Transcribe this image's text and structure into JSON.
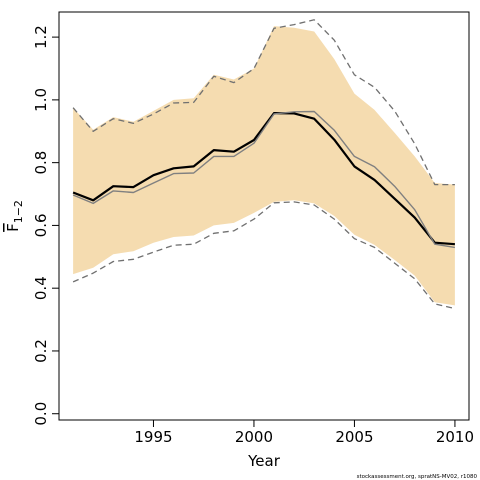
{
  "chart_data": {
    "type": "line",
    "xlabel": "Year",
    "ylabel": "F",
    "ylabel_subscript": "1−2",
    "xlim": [
      1990.3,
      2010.7
    ],
    "ylim": [
      -0.02,
      1.28
    ],
    "xticks": [
      1995,
      2000,
      2005,
      2010
    ],
    "yticks": [
      0.0,
      0.2,
      0.4,
      0.6,
      0.8,
      1.0,
      1.2
    ],
    "ytick_labels": [
      "0.0",
      "0.2",
      "0.4",
      "0.6",
      "0.8",
      "1.0",
      "1.2"
    ],
    "x": [
      1991,
      1992,
      1993,
      1994,
      1995,
      1996,
      1997,
      1998,
      1999,
      2000,
      2001,
      2002,
      2003,
      2004,
      2005,
      2006,
      2007,
      2008,
      2009,
      2010
    ],
    "series": [
      {
        "role": "estimate",
        "color": "#000000",
        "values": [
          0.705,
          0.68,
          0.725,
          0.722,
          0.76,
          0.782,
          0.788,
          0.84,
          0.835,
          0.872,
          0.958,
          0.957,
          0.94,
          0.873,
          0.788,
          0.745,
          0.685,
          0.625,
          0.545,
          0.54
        ]
      },
      {
        "role": "comparison",
        "color": "#808080",
        "values": [
          0.697,
          0.67,
          0.71,
          0.705,
          0.735,
          0.765,
          0.767,
          0.82,
          0.82,
          0.862,
          0.955,
          0.962,
          0.963,
          0.903,
          0.82,
          0.787,
          0.725,
          0.65,
          0.54,
          0.53
        ]
      },
      {
        "role": "upper-bound",
        "color": "#707070",
        "values": [
          0.975,
          0.9,
          0.94,
          0.925,
          0.955,
          0.99,
          0.992,
          1.075,
          1.055,
          1.1,
          1.228,
          1.24,
          1.255,
          1.19,
          1.08,
          1.04,
          0.965,
          0.86,
          0.73,
          0.73
        ]
      },
      {
        "role": "lower-bound",
        "color": "#707070",
        "values": [
          0.42,
          0.448,
          0.485,
          0.492,
          0.515,
          0.537,
          0.54,
          0.575,
          0.583,
          0.62,
          0.672,
          0.675,
          0.665,
          0.62,
          0.558,
          0.53,
          0.48,
          0.43,
          0.35,
          0.335
        ]
      }
    ],
    "band": {
      "color": "#f5dcb0",
      "upper": [
        0.975,
        0.905,
        0.945,
        0.93,
        0.965,
        1.0,
        1.005,
        1.08,
        1.065,
        1.1,
        1.235,
        1.23,
        1.218,
        1.13,
        1.02,
        0.968,
        0.895,
        0.82,
        0.735,
        0.73
      ],
      "lower": [
        0.445,
        0.465,
        0.508,
        0.518,
        0.545,
        0.563,
        0.568,
        0.6,
        0.608,
        0.64,
        0.675,
        0.68,
        0.67,
        0.63,
        0.57,
        0.538,
        0.49,
        0.44,
        0.355,
        0.345
      ]
    }
  },
  "footer": {
    "credit": "stockassessment.org, spratNS-MV02, r1080"
  }
}
